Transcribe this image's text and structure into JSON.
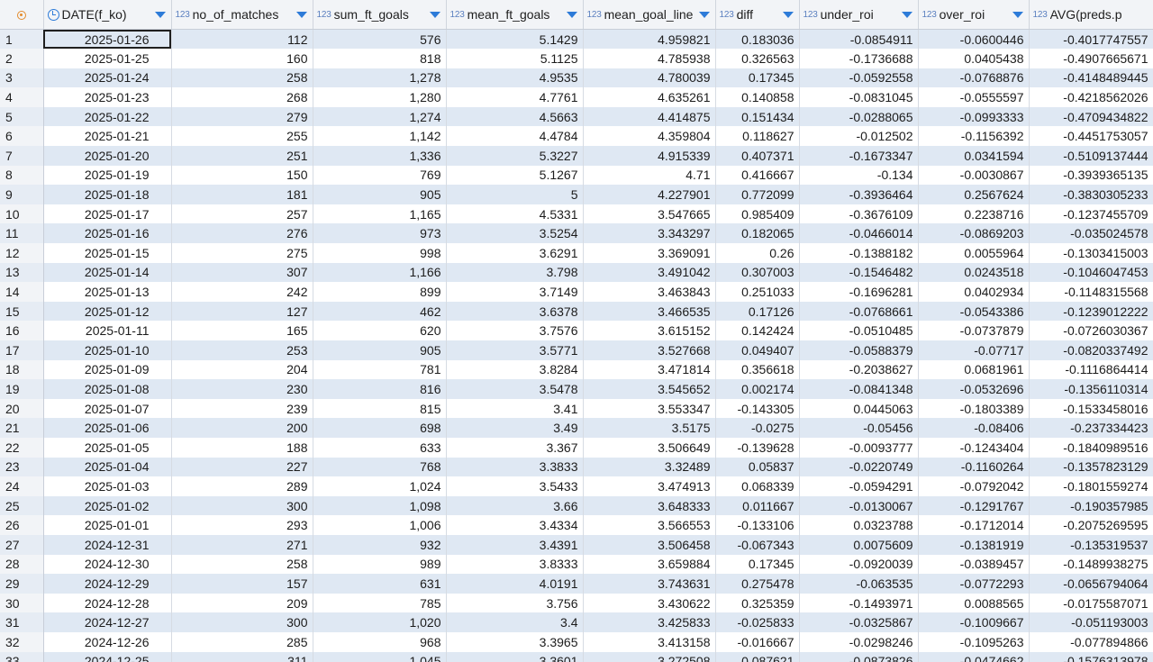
{
  "columns": [
    {
      "name": "DATE(f_ko)",
      "type": "date"
    },
    {
      "name": "no_of_matches",
      "type": "123"
    },
    {
      "name": "sum_ft_goals",
      "type": "123"
    },
    {
      "name": "mean_ft_goals",
      "type": "123"
    },
    {
      "name": "mean_goal_line",
      "type": "123"
    },
    {
      "name": "diff",
      "type": "123"
    },
    {
      "name": "under_roi",
      "type": "123"
    },
    {
      "name": "over_roi",
      "type": "123"
    },
    {
      "name": "AVG(preds.p",
      "type": "123"
    }
  ],
  "rows": [
    [
      "1",
      "2025-01-26",
      "112",
      "576",
      "5.1429",
      "4.959821",
      "0.183036",
      "-0.0854911",
      "-0.0600446",
      "-0.4017747557"
    ],
    [
      "2",
      "2025-01-25",
      "160",
      "818",
      "5.1125",
      "4.785938",
      "0.326563",
      "-0.1736688",
      "0.0405438",
      "-0.4907665671"
    ],
    [
      "3",
      "2025-01-24",
      "258",
      "1,278",
      "4.9535",
      "4.780039",
      "0.17345",
      "-0.0592558",
      "-0.0768876",
      "-0.4148489445"
    ],
    [
      "4",
      "2025-01-23",
      "268",
      "1,280",
      "4.7761",
      "4.635261",
      "0.140858",
      "-0.0831045",
      "-0.0555597",
      "-0.4218562026"
    ],
    [
      "5",
      "2025-01-22",
      "279",
      "1,274",
      "4.5663",
      "4.414875",
      "0.151434",
      "-0.0288065",
      "-0.0993333",
      "-0.4709434822"
    ],
    [
      "6",
      "2025-01-21",
      "255",
      "1,142",
      "4.4784",
      "4.359804",
      "0.118627",
      "-0.012502",
      "-0.1156392",
      "-0.4451753057"
    ],
    [
      "7",
      "2025-01-20",
      "251",
      "1,336",
      "5.3227",
      "4.915339",
      "0.407371",
      "-0.1673347",
      "0.0341594",
      "-0.5109137444"
    ],
    [
      "8",
      "2025-01-19",
      "150",
      "769",
      "5.1267",
      "4.71",
      "0.416667",
      "-0.134",
      "-0.0030867",
      "-0.3939365135"
    ],
    [
      "9",
      "2025-01-18",
      "181",
      "905",
      "5",
      "4.227901",
      "0.772099",
      "-0.3936464",
      "0.2567624",
      "-0.3830305233"
    ],
    [
      "10",
      "2025-01-17",
      "257",
      "1,165",
      "4.5331",
      "3.547665",
      "0.985409",
      "-0.3676109",
      "0.2238716",
      "-0.1237455709"
    ],
    [
      "11",
      "2025-01-16",
      "276",
      "973",
      "3.5254",
      "3.343297",
      "0.182065",
      "-0.0466014",
      "-0.0869203",
      "-0.035024578"
    ],
    [
      "12",
      "2025-01-15",
      "275",
      "998",
      "3.6291",
      "3.369091",
      "0.26",
      "-0.1388182",
      "0.0055964",
      "-0.1303415003"
    ],
    [
      "13",
      "2025-01-14",
      "307",
      "1,166",
      "3.798",
      "3.491042",
      "0.307003",
      "-0.1546482",
      "0.0243518",
      "-0.1046047453"
    ],
    [
      "14",
      "2025-01-13",
      "242",
      "899",
      "3.7149",
      "3.463843",
      "0.251033",
      "-0.1696281",
      "0.0402934",
      "-0.1148315568"
    ],
    [
      "15",
      "2025-01-12",
      "127",
      "462",
      "3.6378",
      "3.466535",
      "0.17126",
      "-0.0768661",
      "-0.0543386",
      "-0.1239012222"
    ],
    [
      "16",
      "2025-01-11",
      "165",
      "620",
      "3.7576",
      "3.615152",
      "0.142424",
      "-0.0510485",
      "-0.0737879",
      "-0.0726030367"
    ],
    [
      "17",
      "2025-01-10",
      "253",
      "905",
      "3.5771",
      "3.527668",
      "0.049407",
      "-0.0588379",
      "-0.07717",
      "-0.0820337492"
    ],
    [
      "18",
      "2025-01-09",
      "204",
      "781",
      "3.8284",
      "3.471814",
      "0.356618",
      "-0.2038627",
      "0.0681961",
      "-0.1116864414"
    ],
    [
      "19",
      "2025-01-08",
      "230",
      "816",
      "3.5478",
      "3.545652",
      "0.002174",
      "-0.0841348",
      "-0.0532696",
      "-0.1356110314"
    ],
    [
      "20",
      "2025-01-07",
      "239",
      "815",
      "3.41",
      "3.553347",
      "-0.143305",
      "0.0445063",
      "-0.1803389",
      "-0.1533458016"
    ],
    [
      "21",
      "2025-01-06",
      "200",
      "698",
      "3.49",
      "3.5175",
      "-0.0275",
      "-0.05456",
      "-0.08406",
      "-0.237334423"
    ],
    [
      "22",
      "2025-01-05",
      "188",
      "633",
      "3.367",
      "3.506649",
      "-0.139628",
      "-0.0093777",
      "-0.1243404",
      "-0.1840989516"
    ],
    [
      "23",
      "2025-01-04",
      "227",
      "768",
      "3.3833",
      "3.32489",
      "0.05837",
      "-0.0220749",
      "-0.1160264",
      "-0.1357823129"
    ],
    [
      "24",
      "2025-01-03",
      "289",
      "1,024",
      "3.5433",
      "3.474913",
      "0.068339",
      "-0.0594291",
      "-0.0792042",
      "-0.1801559274"
    ],
    [
      "25",
      "2025-01-02",
      "300",
      "1,098",
      "3.66",
      "3.648333",
      "0.011667",
      "-0.0130067",
      "-0.1291767",
      "-0.190357985"
    ],
    [
      "26",
      "2025-01-01",
      "293",
      "1,006",
      "3.4334",
      "3.566553",
      "-0.133106",
      "0.0323788",
      "-0.1712014",
      "-0.2075269595"
    ],
    [
      "27",
      "2024-12-31",
      "271",
      "932",
      "3.4391",
      "3.506458",
      "-0.067343",
      "0.0075609",
      "-0.1381919",
      "-0.135319537"
    ],
    [
      "28",
      "2024-12-30",
      "258",
      "989",
      "3.8333",
      "3.659884",
      "0.17345",
      "-0.0920039",
      "-0.0389457",
      "-0.1489938275"
    ],
    [
      "29",
      "2024-12-29",
      "157",
      "631",
      "4.0191",
      "3.743631",
      "0.275478",
      "-0.063535",
      "-0.0772293",
      "-0.0656794064"
    ],
    [
      "30",
      "2024-12-28",
      "209",
      "785",
      "3.756",
      "3.430622",
      "0.325359",
      "-0.1493971",
      "0.0088565",
      "-0.0175587071"
    ],
    [
      "31",
      "2024-12-27",
      "300",
      "1,020",
      "3.4",
      "3.425833",
      "-0.025833",
      "-0.0325867",
      "-0.1009667",
      "-0.051193003"
    ],
    [
      "32",
      "2024-12-26",
      "285",
      "968",
      "3.3965",
      "3.413158",
      "-0.016667",
      "-0.0298246",
      "-0.1095263",
      "-0.077894866"
    ],
    [
      "33",
      "2024-12-25",
      "311",
      "1,045",
      "3.3601",
      "3.272508",
      "0.087621",
      "-0.0873826",
      "-0.0474662",
      "-0.1576313978"
    ]
  ]
}
